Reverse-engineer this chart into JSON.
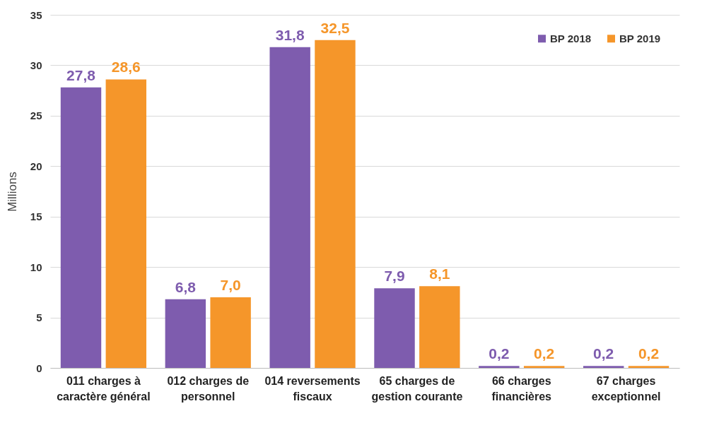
{
  "chart_data": {
    "type": "bar",
    "ylabel": "Millions",
    "categories": [
      "011 charges à caractère général",
      "012 charges de personnel",
      "014 reversements fiscaux",
      "65 charges de gestion courante",
      "66 charges financières",
      "67 charges exceptionnel"
    ],
    "series": [
      {
        "name": "BP 2018",
        "color": "#7e5cae",
        "values": [
          27.8,
          6.8,
          31.8,
          7.9,
          0.2,
          0.2
        ],
        "value_labels": [
          "27,8",
          "6,8",
          "31,8",
          "7,9",
          "0,2",
          "0,2"
        ]
      },
      {
        "name": "BP 2019",
        "color": "#f5962a",
        "values": [
          28.6,
          7.0,
          32.5,
          8.1,
          0.2,
          0.2
        ],
        "value_labels": [
          "28,6",
          "7,0",
          "32,5",
          "8,1",
          "0,2",
          "0,2"
        ]
      }
    ],
    "ylim": [
      0,
      35
    ],
    "yticks": [
      0,
      5,
      10,
      15,
      20,
      25,
      30,
      35
    ],
    "grid": "y",
    "legend": "top right"
  }
}
